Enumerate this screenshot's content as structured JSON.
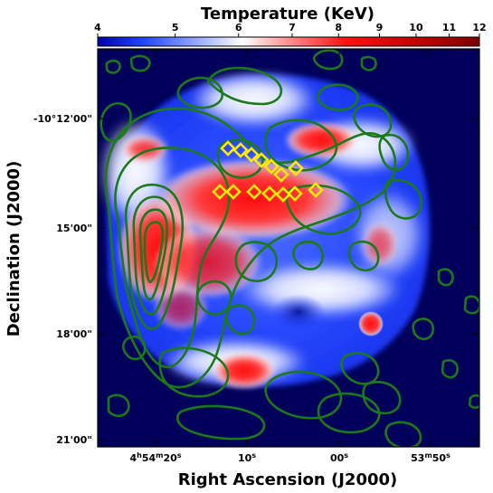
{
  "chart_data": {
    "type": "heatmap",
    "title": "Temperature (KeV)",
    "xlabel": "Right Ascension (J2000)",
    "ylabel": "Declination (J2000)",
    "colorbar": {
      "label": "Temperature (KeV)",
      "colormap": "bwr",
      "ticks": [
        "4",
        "5",
        "6",
        "7",
        "8",
        "9",
        "10",
        "11",
        "12"
      ],
      "range": [
        4,
        12
      ],
      "orientation": "horizontal",
      "position": "top"
    },
    "x_ticks": [
      {
        "label_main": "4",
        "label_sup": "h",
        "label_main2": "54",
        "label_sup2": "m",
        "label_main3": "20",
        "label_sup3": "s"
      },
      {
        "label_main": "10",
        "label_sup": "s"
      },
      {
        "label_main": "00",
        "label_sup": "s"
      },
      {
        "label_main": "53",
        "label_sup": "m",
        "label_main2": "50",
        "label_sup2": "s"
      }
    ],
    "y_ticks": [
      "-10°12'00\"",
      "15'00\"",
      "18'00\"",
      "21'00\""
    ],
    "overlays": {
      "contours": {
        "color": "#1a7a1a",
        "description": "radio contours"
      },
      "markers": {
        "shape": "diamond",
        "color": "#ffeb00",
        "count": 14
      }
    },
    "colors": {
      "background": "#00005a",
      "cold": "#1f3fff",
      "neutral": "#ffffff",
      "hot": "#ff2020",
      "contour": "#1a7a1a",
      "marker": "#ffeb00"
    }
  }
}
